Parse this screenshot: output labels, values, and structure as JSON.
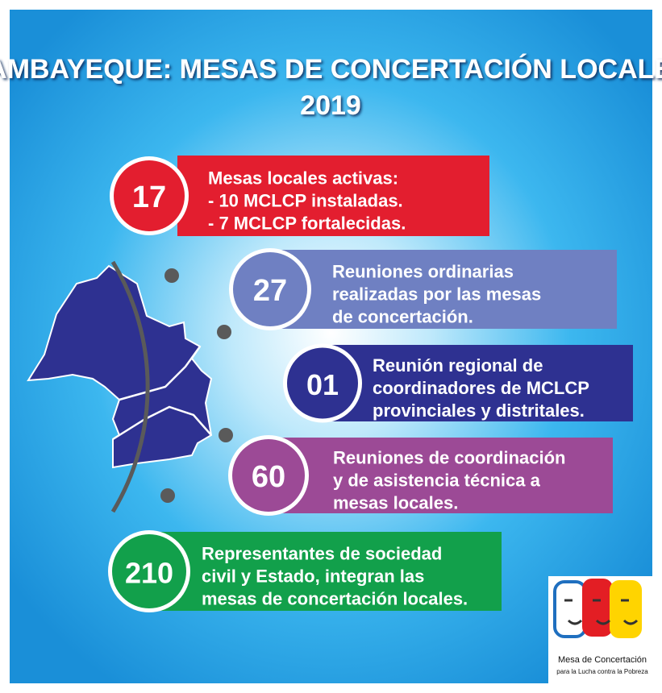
{
  "title": {
    "line1": "LAMBAYEQUE: MESAS DE CONCERTACIÓN LOCALES",
    "line2": "2019"
  },
  "items": [
    {
      "number": "17",
      "lines": [
        "Mesas locales activas:",
        " - 10 MCLCP instaladas.",
        " - 7 MCLCP fortalecidas."
      ]
    },
    {
      "number": "27",
      "lines": [
        "Reuniones ordinarias",
        "realizadas por las mesas",
        "de concertación."
      ]
    },
    {
      "number": "01",
      "lines": [
        "Reunión regional de",
        "coordinadores de MCLCP",
        "provinciales y distritales."
      ]
    },
    {
      "number": "60",
      "lines": [
        "Reuniones de coordinación",
        "y de asistencia técnica a",
        "mesas locales."
      ]
    },
    {
      "number": "210",
      "lines": [
        "Representantes de sociedad",
        "civil y Estado, integran las",
        "mesas de concertación locales."
      ]
    }
  ],
  "logo": {
    "line1": "Mesa de Concertación",
    "line2": "para la Lucha contra la Pobreza"
  }
}
